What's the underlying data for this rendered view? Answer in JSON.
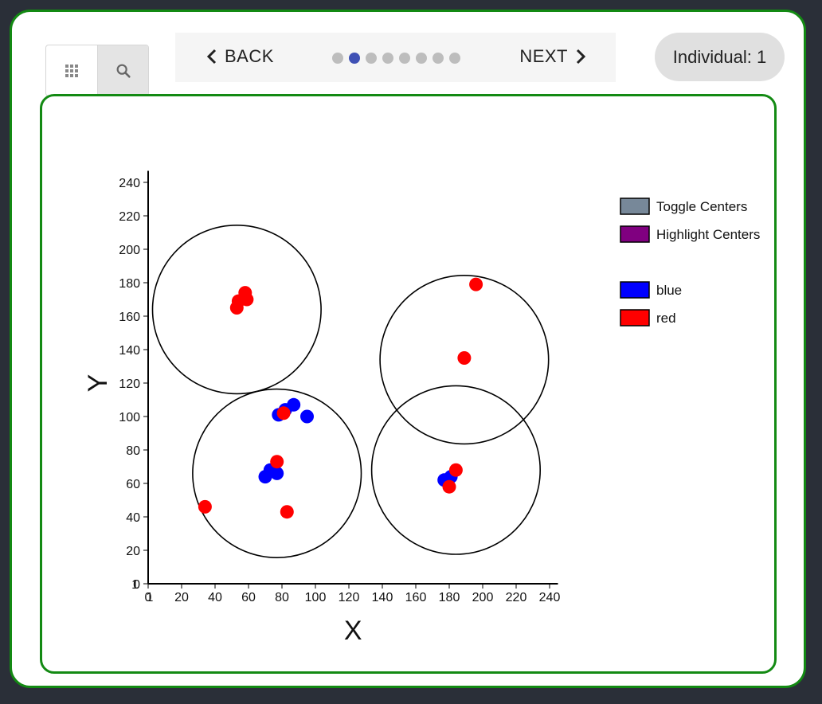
{
  "toolbar": {
    "grid_icon": "grid-icon",
    "search_icon": "search-icon"
  },
  "nav": {
    "back_label": "BACK",
    "next_label": "NEXT",
    "dots": [
      false,
      true,
      false,
      false,
      false,
      false,
      false,
      false
    ]
  },
  "individual_label": "Individual: 1",
  "legend": {
    "items": [
      {
        "label": "Toggle Centers",
        "color": "#778899"
      },
      {
        "label": "Highlight Centers",
        "color": "#800080"
      },
      {
        "label": "blue",
        "color": "#0000ff"
      },
      {
        "label": "red",
        "color": "#ff0000"
      }
    ]
  },
  "chart_data": {
    "type": "scatter",
    "xlabel": "X",
    "ylabel": "Y",
    "xlim": [
      0,
      245
    ],
    "ylim": [
      0,
      245
    ],
    "xticks": [
      0,
      20,
      40,
      60,
      80,
      100,
      120,
      140,
      160,
      180,
      200,
      220,
      240
    ],
    "yticks": [
      0,
      20,
      40,
      60,
      80,
      100,
      120,
      140,
      160,
      180,
      200,
      220,
      240
    ],
    "origin_extra_label": "1",
    "series": [
      {
        "name": "blue",
        "color": "#0000ff",
        "points": [
          [
            78,
            101
          ],
          [
            82,
            104
          ],
          [
            87,
            107
          ],
          [
            95,
            100
          ],
          [
            70,
            64
          ],
          [
            73,
            68
          ],
          [
            77,
            66
          ],
          [
            177,
            62
          ],
          [
            181,
            64
          ]
        ]
      },
      {
        "name": "red",
        "color": "#ff0000",
        "points": [
          [
            53,
            165
          ],
          [
            54,
            169
          ],
          [
            58,
            174
          ],
          [
            59,
            170
          ],
          [
            81,
            102
          ],
          [
            77,
            73
          ],
          [
            34,
            46
          ],
          [
            83,
            43
          ],
          [
            196,
            179
          ],
          [
            189,
            135
          ],
          [
            184,
            68
          ],
          [
            180,
            58
          ]
        ]
      }
    ],
    "circles": [
      {
        "cx": 53,
        "cy": 164,
        "r": 48
      },
      {
        "cx": 77,
        "cy": 66,
        "r": 48
      },
      {
        "cx": 189,
        "cy": 134,
        "r": 48
      },
      {
        "cx": 184,
        "cy": 68,
        "r": 48
      }
    ]
  }
}
